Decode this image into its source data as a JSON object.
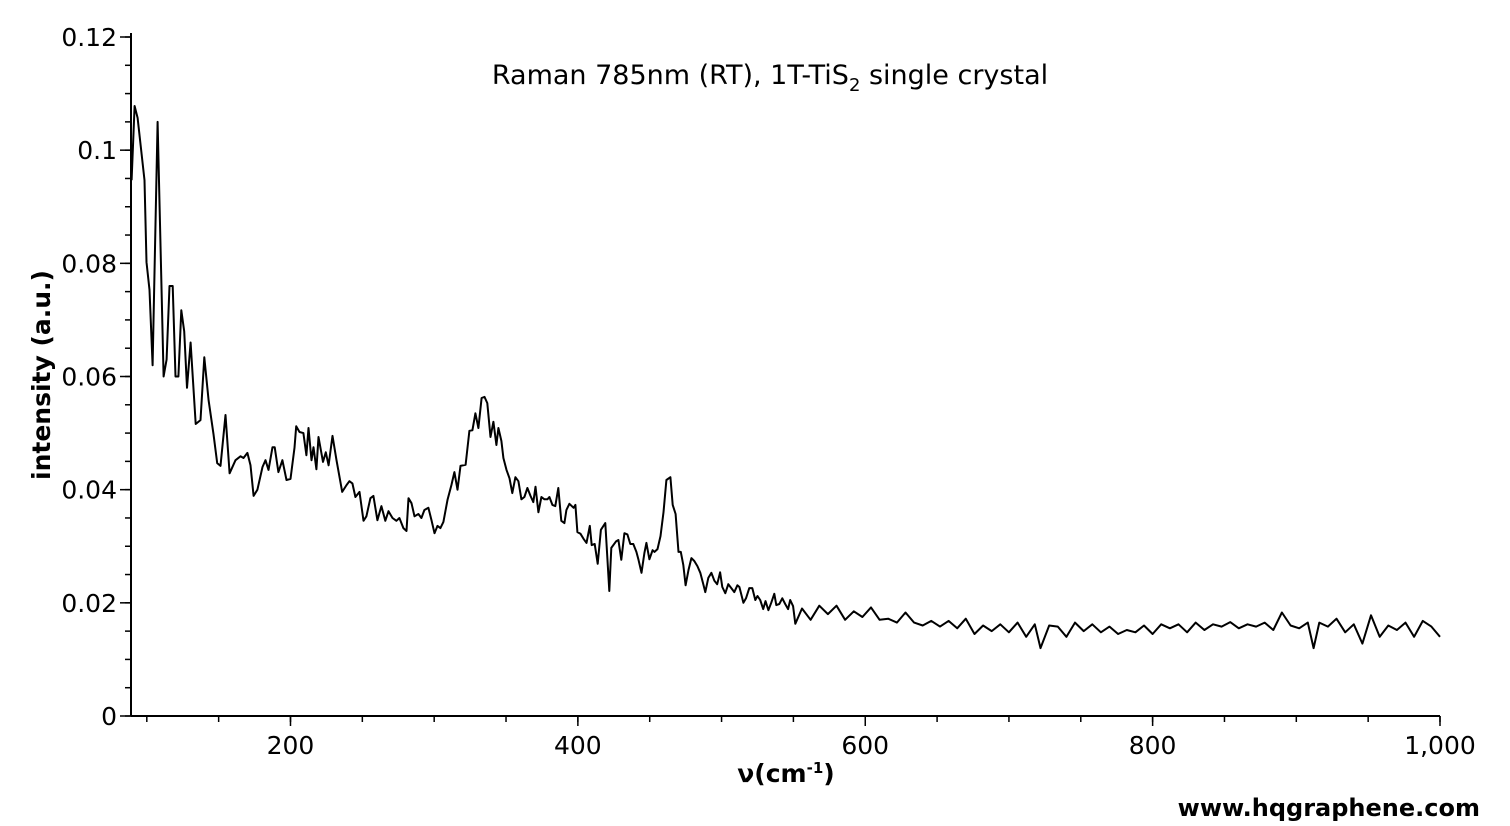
{
  "chart_data": {
    "type": "line",
    "title": {
      "main": "Raman 785nm (RT), 1T-TiS",
      "subscript": "2",
      "rest": " single crystal"
    },
    "xlabel": {
      "main": "ν(cm",
      "superscript": "-1",
      "close": ")"
    },
    "ylabel": "intensity (a.u.)",
    "xlim": [
      89,
      1000
    ],
    "ylim": [
      0,
      0.12
    ],
    "x_ticks": [
      200,
      400,
      600,
      800,
      1000
    ],
    "x_tick_labels": [
      "200",
      "400",
      "600",
      "800",
      "1,000"
    ],
    "y_ticks": [
      0,
      0.02,
      0.04,
      0.06,
      0.08,
      0.1,
      0.12
    ],
    "y_tick_labels": [
      "0",
      "0.02",
      "0.04",
      "0.06",
      "0.08",
      "0.1",
      "0.12"
    ],
    "x_minor_step": 50,
    "y_minor_step": 0.005,
    "grid": false,
    "line_color": "#000000",
    "watermark": "www.hqgraphene.com",
    "series": [
      {
        "name": "1T-TiS2 Raman",
        "x": [
          89.4,
          91.5,
          93.6,
          98.4,
          99.8,
          101.9,
          104,
          107.5,
          111.7,
          113.8,
          115.8,
          118,
          120,
          122,
          124,
          126,
          128,
          130.5,
          134,
          137.4,
          140,
          143,
          146.4,
          149,
          151.3,
          154.8,
          157.6,
          161.7,
          165.2,
          167.3,
          170,
          172.2,
          174.3,
          177,
          180.5,
          182.6,
          184.7,
          187.5,
          189,
          191.6,
          194.4,
          197.2,
          200,
          202.8,
          204,
          206.3,
          209,
          211.1,
          212.5,
          214.6,
          216,
          218,
          219.5,
          222.6,
          224.6,
          226.5,
          229.2,
          232,
          236,
          239,
          241,
          243.1,
          245.2,
          248,
          250.8,
          252.8,
          255.6,
          257.7,
          260.5,
          263.3,
          266,
          268.2,
          271,
          273.7,
          275.8,
          278.6,
          280.7,
          282.1,
          284.2,
          286.3,
          289,
          291.1,
          293.2,
          296,
          298.1,
          300.2,
          302.3,
          304.3,
          306.4,
          309.3,
          312,
          314.1,
          316.2,
          318.3,
          321.9,
          324.5,
          326.6,
          328.7,
          330.8,
          333,
          335,
          337,
          339.2,
          341.2,
          343.3,
          344.7,
          346.8,
          348.2,
          350.3,
          352.4,
          354.4,
          356.5,
          358.6,
          360.7,
          362.8,
          364.9,
          367,
          369,
          370.5,
          372.5,
          374.6,
          376.7,
          378.8,
          380.2,
          382.3,
          384.3,
          386.4,
          388.5,
          390.6,
          392,
          394.1,
          397,
          398.3,
          399.7,
          401.8,
          404,
          406,
          408.3,
          409.6,
          411.7,
          413.8,
          416,
          419.1,
          421.9,
          423.3,
          426.7,
          428.2,
          430.2,
          432.4,
          434.5,
          436.5,
          438.6,
          440.7,
          442.2,
          444.3,
          446.3,
          447.7,
          449.8,
          452,
          453.3,
          455.4,
          457.5,
          459.6,
          461.6,
          464.4,
          466,
          468,
          470,
          471.6,
          473.4,
          475,
          477,
          479,
          481,
          483.2,
          485.2,
          487.3,
          488.7,
          490.8,
          492.9,
          495,
          497,
          499,
          500.5,
          502.6,
          504.7,
          506.8,
          508.9,
          511,
          512.4,
          515.2,
          517,
          519.3,
          521.4,
          523.5,
          525,
          526.9,
          529,
          530.6,
          532.6,
          534.7,
          536.7,
          538.1,
          540.2,
          542.3,
          544.3,
          546.3,
          547.8,
          549.8,
          551.3,
          556,
          562,
          568,
          574,
          580,
          586,
          592,
          598,
          604,
          610,
          616,
          622,
          628,
          634,
          640,
          646,
          652,
          658,
          664,
          670,
          676,
          682,
          688,
          694,
          700,
          706,
          712,
          718,
          722,
          728,
          734,
          740,
          746,
          752,
          758,
          764,
          770,
          776,
          782,
          788,
          794,
          800,
          806,
          812,
          818,
          824,
          830,
          836,
          842,
          848,
          854,
          860,
          866,
          872,
          878,
          884,
          890,
          896,
          902,
          908,
          912,
          916,
          922,
          928,
          934,
          940,
          946,
          952,
          958,
          964,
          970,
          976,
          982,
          988,
          994,
          1000
        ],
        "y": [
          0.0947,
          0.1078,
          0.1057,
          0.0947,
          0.0802,
          0.0753,
          0.062,
          0.105,
          0.06,
          0.063,
          0.076,
          0.076,
          0.06,
          0.06,
          0.0717,
          0.068,
          0.058,
          0.066,
          0.0516,
          0.0523,
          0.0634,
          0.0558,
          0.0498,
          0.0447,
          0.0442,
          0.0532,
          0.0429,
          0.0452,
          0.0459,
          0.0456,
          0.0465,
          0.0443,
          0.0389,
          0.04,
          0.044,
          0.0452,
          0.0435,
          0.0475,
          0.0475,
          0.0431,
          0.0452,
          0.0417,
          0.0419,
          0.0474,
          0.0512,
          0.0502,
          0.05,
          0.0461,
          0.0509,
          0.0452,
          0.0475,
          0.0436,
          0.0493,
          0.0449,
          0.0466,
          0.0443,
          0.0495,
          0.0452,
          0.0396,
          0.0408,
          0.0415,
          0.0411,
          0.0387,
          0.0396,
          0.0345,
          0.0353,
          0.0385,
          0.0389,
          0.0346,
          0.0371,
          0.0345,
          0.0362,
          0.035,
          0.0345,
          0.035,
          0.0332,
          0.0327,
          0.0385,
          0.0376,
          0.0353,
          0.0357,
          0.035,
          0.0364,
          0.0368,
          0.0346,
          0.0323,
          0.0336,
          0.0332,
          0.0343,
          0.0382,
          0.0408,
          0.0431,
          0.04,
          0.0442,
          0.0444,
          0.0504,
          0.0505,
          0.0535,
          0.0509,
          0.0562,
          0.0564,
          0.0553,
          0.0493,
          0.052,
          0.0479,
          0.0509,
          0.0486,
          0.0456,
          0.0435,
          0.042,
          0.0394,
          0.0422,
          0.0415,
          0.0383,
          0.0387,
          0.0403,
          0.0389,
          0.0378,
          0.0405,
          0.036,
          0.0387,
          0.0383,
          0.0383,
          0.0387,
          0.0373,
          0.0371,
          0.0403,
          0.0345,
          0.0341,
          0.0364,
          0.0375,
          0.0368,
          0.0373,
          0.0325,
          0.0322,
          0.0313,
          0.0306,
          0.0336,
          0.0302,
          0.0304,
          0.0269,
          0.0329,
          0.0341,
          0.0221,
          0.0297,
          0.0309,
          0.0311,
          0.0276,
          0.0323,
          0.0321,
          0.0304,
          0.0304,
          0.029,
          0.0276,
          0.0253,
          0.0288,
          0.0306,
          0.0277,
          0.0293,
          0.029,
          0.0295,
          0.0318,
          0.036,
          0.0417,
          0.0422,
          0.0373,
          0.0357,
          0.029,
          0.029,
          0.0267,
          0.0231,
          0.0258,
          0.0279,
          0.0274,
          0.0265,
          0.0253,
          0.0233,
          0.0219,
          0.0244,
          0.0253,
          0.0239,
          0.0233,
          0.0254,
          0.0228,
          0.0217,
          0.0233,
          0.0226,
          0.0219,
          0.0231,
          0.0228,
          0.02,
          0.0208,
          0.0226,
          0.0226,
          0.0205,
          0.0212,
          0.0205,
          0.0189,
          0.0203,
          0.0187,
          0.0201,
          0.0216,
          0.0196,
          0.0198,
          0.0208,
          0.0198,
          0.0189,
          0.0205,
          0.0194,
          0.0163,
          0.019,
          0.017,
          0.0195,
          0.018,
          0.0195,
          0.017,
          0.0185,
          0.0175,
          0.0192,
          0.017,
          0.0172,
          0.0165,
          0.0183,
          0.0165,
          0.016,
          0.0168,
          0.0158,
          0.0168,
          0.0155,
          0.0172,
          0.0145,
          0.016,
          0.015,
          0.0162,
          0.0148,
          0.0165,
          0.014,
          0.0162,
          0.012,
          0.016,
          0.0158,
          0.014,
          0.0165,
          0.015,
          0.0162,
          0.0148,
          0.0158,
          0.0145,
          0.0152,
          0.0148,
          0.016,
          0.0145,
          0.0162,
          0.0155,
          0.0162,
          0.0148,
          0.0165,
          0.0152,
          0.0162,
          0.0158,
          0.0166,
          0.0155,
          0.0162,
          0.0158,
          0.0165,
          0.0152,
          0.0183,
          0.016,
          0.0155,
          0.0165,
          0.012,
          0.0165,
          0.0158,
          0.0172,
          0.0148,
          0.0162,
          0.0128,
          0.0178,
          0.014,
          0.016,
          0.0152,
          0.0165,
          0.014,
          0.0168,
          0.0158,
          0.014
        ]
      }
    ]
  }
}
